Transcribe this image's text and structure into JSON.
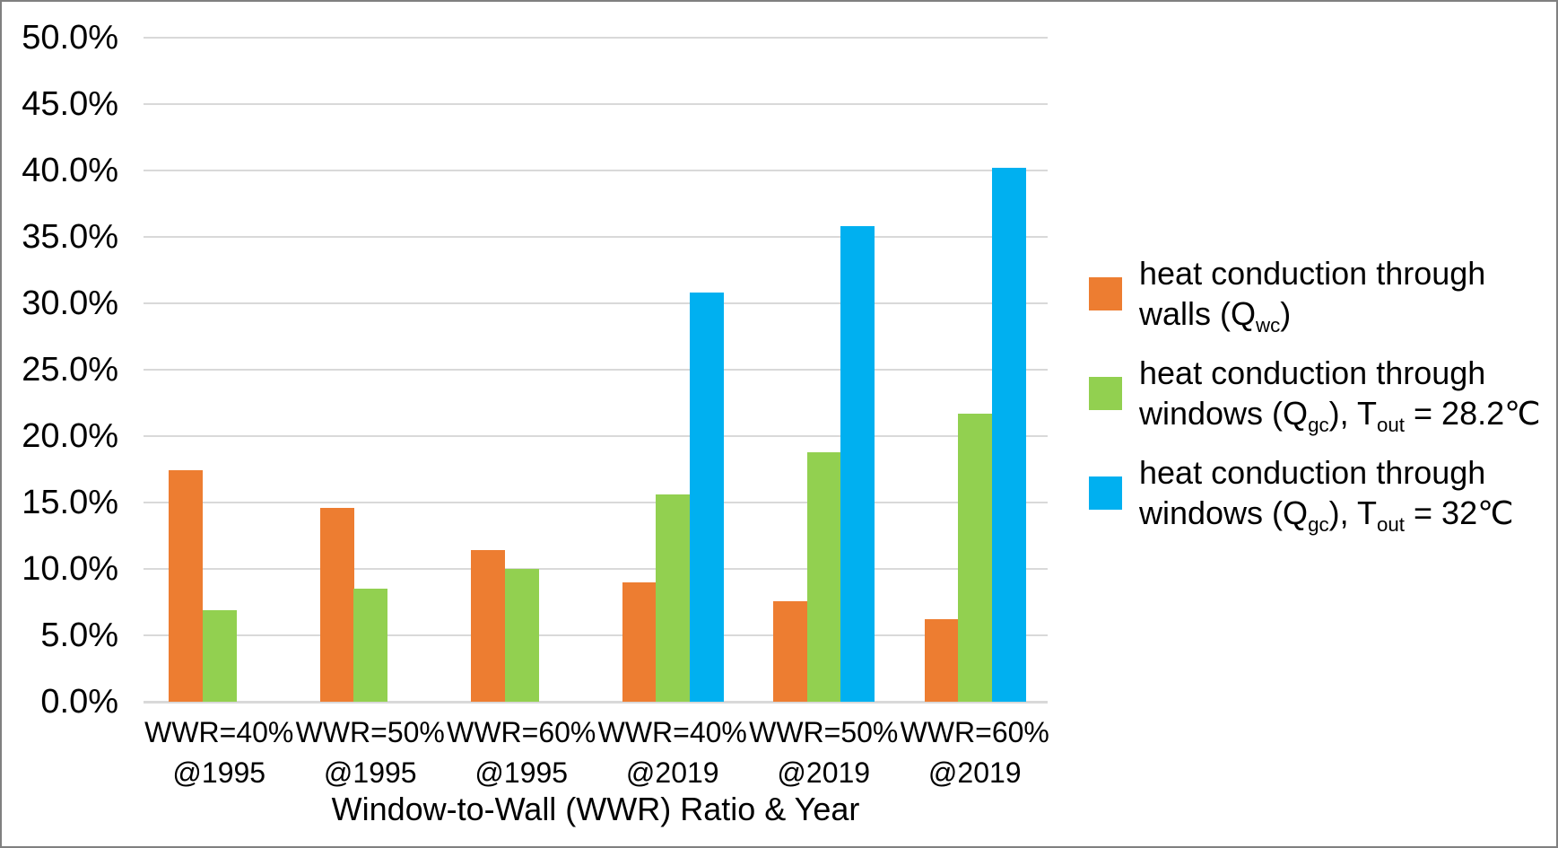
{
  "figure": {
    "background": "#FFFFFF",
    "border_color": "#808080",
    "text_color": "#000000",
    "gridline_color": "#D9D9D9",
    "axis_line_color": "#D9D9D9"
  },
  "chart_data": {
    "type": "bar",
    "title": "",
    "xlabel": "Window-to-Wall (WWR) Ratio & Year",
    "ylabel": "",
    "ylim": [
      0,
      50
    ],
    "ytick_step": 5,
    "ytick_labels": [
      "0.0%",
      "5.0%",
      "10.0%",
      "15.0%",
      "20.0%",
      "25.0%",
      "30.0%",
      "35.0%",
      "40.0%",
      "45.0%",
      "50.0%"
    ],
    "grid": true,
    "legend_position": "right",
    "categories": [
      {
        "line1": "WWR=40%",
        "line2": "@1995"
      },
      {
        "line1": "WWR=50%",
        "line2": "@1995"
      },
      {
        "line1": "WWR=60%",
        "line2": "@1995"
      },
      {
        "line1": "WWR=40%",
        "line2": "@2019"
      },
      {
        "line1": "WWR=50%",
        "line2": "@2019"
      },
      {
        "line1": "WWR=60%",
        "line2": "@2019"
      }
    ],
    "series": [
      {
        "name": "heat conduction through walls (Qwc)",
        "color": "#ED7D31",
        "values": [
          17.4,
          14.6,
          11.4,
          9.0,
          7.6,
          6.2
        ],
        "legend_lines": [
          [
            {
              "text": "heat conduction through"
            }
          ],
          [
            {
              "text": "walls (Q"
            },
            {
              "text": "wc",
              "sub": true
            },
            {
              "text": ")"
            }
          ]
        ]
      },
      {
        "name": "heat conduction through windows (Qgc), Tout = 28.2℃",
        "color": "#92D050",
        "values": [
          6.9,
          8.5,
          10.0,
          15.6,
          18.8,
          21.7
        ],
        "legend_lines": [
          [
            {
              "text": "heat conduction through"
            }
          ],
          [
            {
              "text": "windows (Q"
            },
            {
              "text": "gc",
              "sub": true
            },
            {
              "text": "), T"
            },
            {
              "text": "out",
              "sub": true
            },
            {
              "text": " = 28.2℃"
            }
          ]
        ]
      },
      {
        "name": "heat conduction through windows (Qgc), Tout = 32℃",
        "color": "#00B0F0",
        "values": [
          null,
          null,
          null,
          30.8,
          35.8,
          40.2
        ],
        "legend_lines": [
          [
            {
              "text": "heat conduction through"
            }
          ],
          [
            {
              "text": "windows (Q"
            },
            {
              "text": "gc",
              "sub": true
            },
            {
              "text": "), T"
            },
            {
              "text": "out",
              "sub": true
            },
            {
              "text": " = 32℃"
            }
          ]
        ]
      }
    ]
  }
}
